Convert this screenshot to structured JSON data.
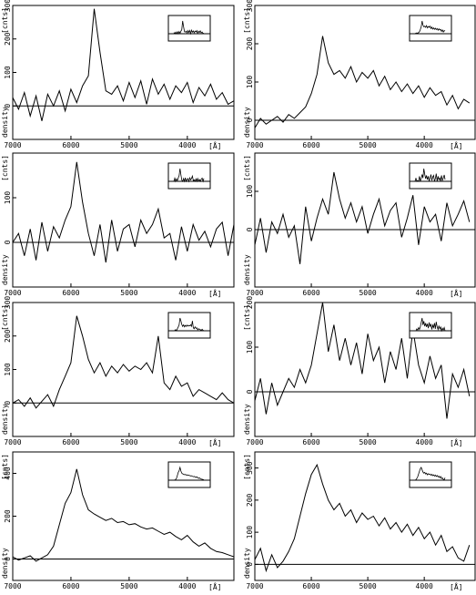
{
  "figure": {
    "ylabel": "density [cnts]",
    "xunit": "[Å]"
  },
  "chart_data": [
    {
      "type": "line",
      "grid": false,
      "xlim": [
        7000,
        3200
      ],
      "ylim": [
        -100,
        300
      ],
      "xticks": [
        7000,
        6000,
        5000,
        4000
      ],
      "yticks": [
        0,
        100,
        200,
        300
      ],
      "xlabel": "[Å]",
      "ylabel": "density [cnts]",
      "x": [
        7000,
        6900,
        6800,
        6700,
        6600,
        6500,
        6400,
        6300,
        6200,
        6100,
        6000,
        5900,
        5800,
        5700,
        5600,
        5500,
        5400,
        5300,
        5200,
        5100,
        5000,
        4900,
        4800,
        4700,
        4600,
        4500,
        4400,
        4300,
        4200,
        4100,
        4000,
        3900,
        3800,
        3700,
        3600,
        3500,
        3400,
        3300,
        3200
      ],
      "values": [
        25,
        -10,
        40,
        -30,
        30,
        -45,
        35,
        0,
        45,
        -15,
        50,
        10,
        60,
        90,
        290,
        160,
        45,
        35,
        60,
        15,
        70,
        25,
        75,
        5,
        80,
        35,
        65,
        20,
        60,
        40,
        70,
        10,
        55,
        30,
        65,
        20,
        40,
        5,
        15
      ]
    },
    {
      "type": "line",
      "grid": false,
      "xlim": [
        7000,
        3100
      ],
      "ylim": [
        -50,
        300
      ],
      "xticks": [
        7000,
        6000,
        5000,
        4000
      ],
      "yticks": [
        0,
        100,
        200,
        300
      ],
      "xlabel": "[Å]",
      "ylabel": "density [cnts]",
      "x": [
        7000,
        6900,
        6800,
        6700,
        6600,
        6500,
        6400,
        6300,
        6200,
        6100,
        6000,
        5900,
        5800,
        5700,
        5600,
        5500,
        5400,
        5300,
        5200,
        5100,
        5000,
        4900,
        4800,
        4700,
        4600,
        4500,
        4400,
        4300,
        4200,
        4100,
        4000,
        3900,
        3800,
        3700,
        3600,
        3500,
        3400,
        3300,
        3200
      ],
      "values": [
        -20,
        5,
        -10,
        0,
        10,
        -5,
        15,
        5,
        20,
        35,
        70,
        120,
        220,
        150,
        120,
        130,
        110,
        140,
        100,
        125,
        110,
        130,
        90,
        115,
        80,
        100,
        75,
        95,
        70,
        90,
        60,
        85,
        65,
        75,
        40,
        65,
        30,
        55,
        45
      ]
    },
    {
      "type": "line",
      "grid": false,
      "xlim": [
        7000,
        3200
      ],
      "ylim": [
        -100,
        200
      ],
      "xticks": [
        7000,
        6000,
        5000,
        4000
      ],
      "yticks": [
        0,
        100
      ],
      "xlabel": "[Å]",
      "ylabel": "density [cnts]",
      "x": [
        7000,
        6900,
        6800,
        6700,
        6600,
        6500,
        6400,
        6300,
        6200,
        6100,
        6000,
        5900,
        5800,
        5700,
        5600,
        5500,
        5400,
        5300,
        5200,
        5100,
        5000,
        4900,
        4800,
        4700,
        4600,
        4500,
        4400,
        4300,
        4200,
        4100,
        4000,
        3900,
        3800,
        3700,
        3600,
        3500,
        3400,
        3300,
        3200
      ],
      "values": [
        0,
        20,
        -30,
        30,
        -40,
        45,
        -20,
        35,
        10,
        50,
        80,
        180,
        90,
        20,
        -30,
        40,
        -45,
        50,
        -20,
        30,
        40,
        -10,
        50,
        20,
        40,
        75,
        10,
        20,
        -40,
        35,
        -20,
        40,
        5,
        25,
        -10,
        30,
        45,
        -30,
        40
      ]
    },
    {
      "type": "line",
      "grid": false,
      "xlim": [
        7000,
        3100
      ],
      "ylim": [
        -150,
        200
      ],
      "xticks": [
        7000,
        6000,
        5000,
        4000
      ],
      "yticks": [
        0,
        100
      ],
      "xlabel": "[Å]",
      "ylabel": "density [cnts]",
      "x": [
        7000,
        6900,
        6800,
        6700,
        6600,
        6500,
        6400,
        6300,
        6200,
        6100,
        6000,
        5900,
        5800,
        5700,
        5600,
        5500,
        5400,
        5300,
        5200,
        5100,
        5000,
        4900,
        4800,
        4700,
        4600,
        4500,
        4400,
        4300,
        4200,
        4100,
        4000,
        3900,
        3800,
        3700,
        3600,
        3500,
        3400,
        3300,
        3200
      ],
      "values": [
        -40,
        30,
        -60,
        20,
        -10,
        40,
        -20,
        10,
        -90,
        60,
        -30,
        30,
        80,
        40,
        150,
        80,
        30,
        70,
        20,
        60,
        -10,
        40,
        80,
        10,
        50,
        70,
        -20,
        30,
        90,
        -40,
        60,
        20,
        40,
        -30,
        70,
        10,
        40,
        75,
        20
      ]
    },
    {
      "type": "line",
      "grid": false,
      "xlim": [
        7000,
        3200
      ],
      "ylim": [
        -100,
        300
      ],
      "xticks": [
        7000,
        6000,
        5000,
        4000
      ],
      "yticks": [
        0,
        100,
        200,
        300
      ],
      "xlabel": "[Å]",
      "ylabel": "density [cnts]",
      "x": [
        7000,
        6900,
        6800,
        6700,
        6600,
        6500,
        6400,
        6300,
        6200,
        6100,
        6000,
        5900,
        5800,
        5700,
        5600,
        5500,
        5400,
        5300,
        5200,
        5100,
        5000,
        4900,
        4800,
        4700,
        4600,
        4500,
        4400,
        4300,
        4200,
        4100,
        4000,
        3900,
        3800,
        3700,
        3600,
        3500,
        3400,
        3300,
        3200
      ],
      "values": [
        0,
        10,
        -10,
        15,
        -15,
        5,
        25,
        -10,
        40,
        80,
        120,
        260,
        200,
        130,
        90,
        120,
        80,
        110,
        90,
        115,
        95,
        110,
        100,
        120,
        90,
        200,
        60,
        40,
        80,
        50,
        60,
        20,
        40,
        30,
        20,
        10,
        30,
        10,
        0
      ]
    },
    {
      "type": "line",
      "grid": false,
      "xlim": [
        7000,
        3100
      ],
      "ylim": [
        -100,
        200
      ],
      "xticks": [
        7000,
        6000,
        5000,
        4000
      ],
      "yticks": [
        0,
        100,
        200
      ],
      "xlabel": "[Å]",
      "ylabel": "density [cnts]",
      "x": [
        7000,
        6900,
        6800,
        6700,
        6600,
        6500,
        6400,
        6300,
        6200,
        6100,
        6000,
        5900,
        5800,
        5700,
        5600,
        5500,
        5400,
        5300,
        5200,
        5100,
        5000,
        4900,
        4800,
        4700,
        4600,
        4500,
        4400,
        4300,
        4200,
        4100,
        4000,
        3900,
        3800,
        3700,
        3600,
        3500,
        3400,
        3300,
        3200
      ],
      "values": [
        -20,
        30,
        -50,
        20,
        -30,
        0,
        30,
        10,
        50,
        20,
        60,
        130,
        200,
        90,
        150,
        70,
        120,
        60,
        110,
        40,
        130,
        70,
        100,
        20,
        90,
        50,
        120,
        30,
        140,
        60,
        20,
        80,
        30,
        60,
        -60,
        40,
        10,
        50,
        -10
      ]
    },
    {
      "type": "line",
      "grid": false,
      "xlim": [
        7000,
        3200
      ],
      "ylim": [
        -100,
        500
      ],
      "xticks": [
        7000,
        6000,
        5000,
        4000
      ],
      "yticks": [
        0,
        200,
        400
      ],
      "xlabel": "[Å]",
      "ylabel": "density [cnts]",
      "x": [
        7000,
        6900,
        6800,
        6700,
        6600,
        6500,
        6400,
        6300,
        6200,
        6100,
        6000,
        5900,
        5800,
        5700,
        5600,
        5500,
        5400,
        5300,
        5200,
        5100,
        5000,
        4900,
        4800,
        4700,
        4600,
        4500,
        4400,
        4300,
        4200,
        4100,
        4000,
        3900,
        3800,
        3700,
        3600,
        3500,
        3400,
        3300,
        3200
      ],
      "values": [
        10,
        -5,
        5,
        15,
        -10,
        5,
        20,
        60,
        160,
        260,
        310,
        420,
        300,
        230,
        210,
        195,
        180,
        190,
        170,
        175,
        160,
        165,
        150,
        140,
        145,
        130,
        115,
        125,
        105,
        90,
        110,
        80,
        60,
        75,
        50,
        35,
        30,
        20,
        10
      ]
    },
    {
      "type": "line",
      "grid": false,
      "xlim": [
        7000,
        3100
      ],
      "ylim": [
        -50,
        350
      ],
      "xticks": [
        7000,
        6000,
        5000,
        4000
      ],
      "yticks": [
        0,
        100,
        200,
        300
      ],
      "xlabel": "[Å]",
      "ylabel": "density [cnts]",
      "x": [
        7000,
        6900,
        6800,
        6700,
        6600,
        6500,
        6400,
        6300,
        6200,
        6100,
        6000,
        5900,
        5800,
        5700,
        5600,
        5500,
        5400,
        5300,
        5200,
        5100,
        5000,
        4900,
        4800,
        4700,
        4600,
        4500,
        4400,
        4300,
        4200,
        4100,
        4000,
        3900,
        3800,
        3700,
        3600,
        3500,
        3400,
        3300,
        3200
      ],
      "values": [
        15,
        50,
        -20,
        30,
        -10,
        10,
        40,
        80,
        150,
        220,
        280,
        310,
        250,
        200,
        170,
        190,
        150,
        170,
        130,
        160,
        140,
        150,
        120,
        145,
        110,
        130,
        100,
        125,
        90,
        115,
        80,
        100,
        60,
        90,
        40,
        55,
        20,
        10,
        60
      ]
    }
  ]
}
